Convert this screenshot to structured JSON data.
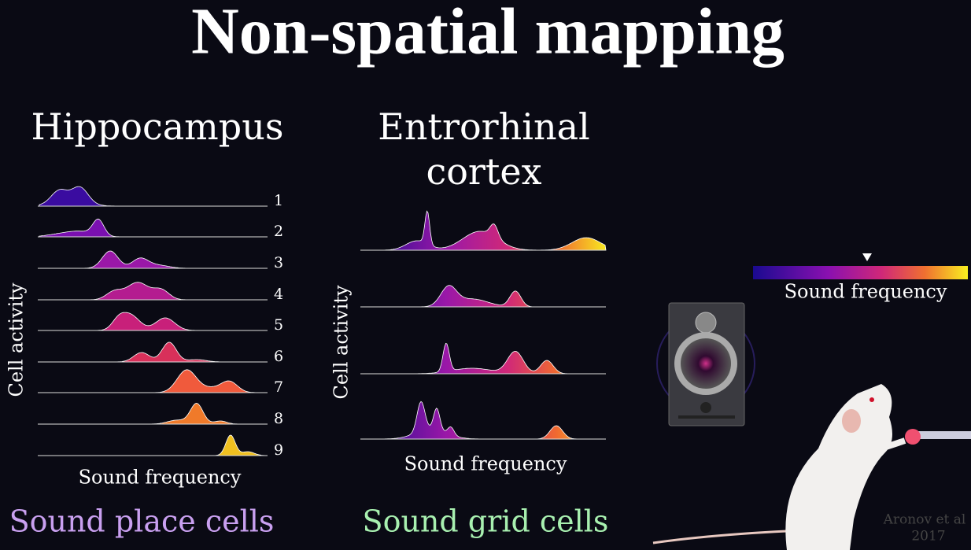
{
  "title": "Non-spatial mapping",
  "left_panel": {
    "title": "Hippocampus",
    "y_label": "Cell activity",
    "x_label": "Sound frequency",
    "rows": [
      "1",
      "2",
      "3",
      "4",
      "5",
      "6",
      "7",
      "8",
      "9"
    ],
    "caption": "Sound place cells"
  },
  "middle_panel": {
    "title_lines": [
      "Entrorhinal",
      "cortex"
    ],
    "y_label": "Cell activity",
    "x_label": "Sound frequency",
    "caption": "Sound grid cells"
  },
  "right_panel": {
    "colorbar_label": "Sound frequency",
    "citation": [
      "Aronov et al",
      "2017"
    ]
  }
}
